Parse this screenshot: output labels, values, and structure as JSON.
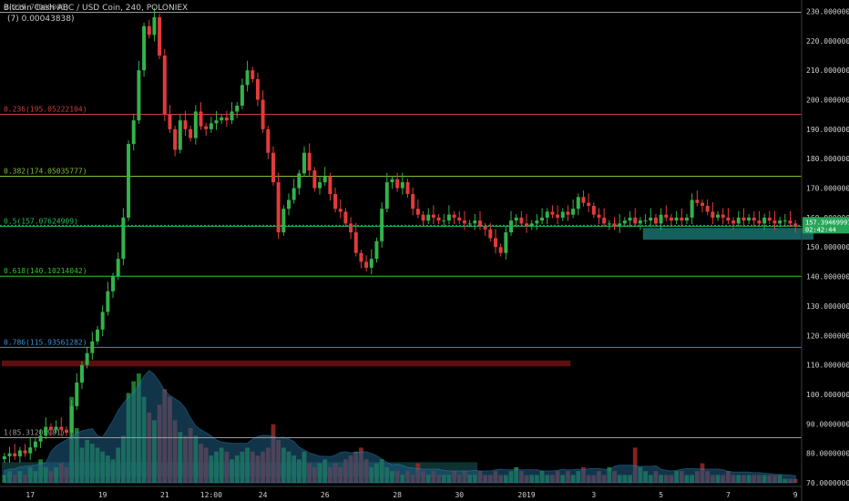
{
  "header": {
    "title": "Bitcoin Cash ABC / USD Coin, 240, POLONIEX",
    "subtitle": "(7) 0.00043838)"
  },
  "colors": {
    "up": "#33b24a",
    "down": "#e23b3b",
    "background": "#000000",
    "axis_text": "#cfcfcf",
    "volume_area": "#1f5f86",
    "current_price_bg": "#27a65a",
    "support_zone": "#1e7f7f",
    "resistance_zone": "#7a1414"
  },
  "chart_data": {
    "type": "candlestick",
    "ylim": [
      70,
      232
    ],
    "yticks": [
      70,
      80,
      90,
      100,
      110,
      120,
      130,
      140,
      150,
      160,
      170,
      180,
      190,
      200,
      210,
      220,
      230
    ],
    "ytick_labels": [
      "70.00000000",
      "80.00000000",
      "90.00000000",
      "100.00000000",
      "110.00000000",
      "120.00000000",
      "130.00000000",
      "140.00000000",
      "150.00000000",
      "160.00000000",
      "170.00000000",
      "180.00000000",
      "190.00000000",
      "200.00000000",
      "210.00000000",
      "220.00000000",
      "230.00000000"
    ],
    "xticks": [
      {
        "label": "17",
        "i": 5
      },
      {
        "label": "19",
        "i": 19
      },
      {
        "label": "21",
        "i": 31
      },
      {
        "label": "12:00",
        "i": 40
      },
      {
        "label": "24",
        "i": 50
      },
      {
        "label": "26",
        "i": 62
      },
      {
        "label": "28",
        "i": 76
      },
      {
        "label": "30",
        "i": 88
      },
      {
        "label": "2019",
        "i": 101
      },
      {
        "label": "3",
        "i": 114
      },
      {
        "label": "5",
        "i": 127
      },
      {
        "label": "7",
        "i": 140
      },
      {
        "label": "9",
        "i": 153
      }
    ],
    "fib_levels": [
      {
        "label": "1(85.31205981)",
        "value": 85.31205981,
        "color": "#9a9a9a"
      },
      {
        "label": "0.786(115.93561282)",
        "value": 115.93561282,
        "color": "#3d8fd1"
      },
      {
        "label": "0.618(140.10214042)",
        "value": 140.10214042,
        "color": "#3bbf3b"
      },
      {
        "label": "0.5(157.07624909)",
        "value": 157.07624909,
        "color": "#1fbf5a"
      },
      {
        "label": "0.382(174.05035777)",
        "value": 174.05035777,
        "color": "#7fbf3b"
      },
      {
        "label": "0.236(195.05222104)",
        "value": 195.05222104,
        "color": "#d13b3b"
      },
      {
        "label": "0(229.70000000)",
        "value": 229.7,
        "color": "#9a9a9a"
      }
    ],
    "current_price": {
      "label": "157.39469997",
      "value": 157.39469997,
      "countdown": "02:42:44"
    },
    "zones": [
      {
        "name": "support",
        "low": 152.5,
        "high": 156.5,
        "from_i": 124,
        "to_i": 157
      },
      {
        "name": "resistance",
        "low": 109.5,
        "high": 111.5,
        "from_i": 0,
        "to_i": 110
      },
      {
        "name": "volume-zone",
        "low": 72,
        "high": 77,
        "from_i": 0,
        "to_i": 92
      }
    ],
    "closes": [
      79,
      80,
      79,
      81,
      80,
      82,
      84,
      86,
      89,
      88,
      89,
      88,
      87,
      96,
      104,
      110,
      114,
      118,
      122,
      128,
      135,
      140,
      146,
      160,
      185,
      193,
      210,
      225,
      222,
      228,
      215,
      195,
      190,
      183,
      193,
      190,
      187,
      196,
      191,
      190,
      192,
      193,
      194,
      193,
      196,
      198,
      205,
      210,
      207,
      200,
      190,
      182,
      172,
      155,
      163,
      166,
      170,
      175,
      182,
      176,
      170,
      172,
      174,
      168,
      163,
      162,
      158,
      155,
      148,
      145,
      143,
      146,
      152,
      163,
      172,
      173,
      170,
      172,
      168,
      163,
      161,
      159,
      161,
      160,
      159,
      159,
      161,
      160,
      159,
      158,
      158,
      159,
      157,
      156,
      153,
      150,
      148,
      155,
      159,
      160,
      158,
      157,
      158,
      159,
      160,
      162,
      161,
      160,
      162,
      161,
      163,
      167,
      165,
      164,
      161,
      160,
      158,
      158,
      157,
      158,
      159,
      160,
      158,
      159,
      159,
      160,
      158,
      161,
      160,
      159,
      160,
      159,
      160,
      166,
      165,
      164,
      162,
      160,
      161,
      160,
      159,
      158,
      160,
      159,
      160,
      159,
      158,
      160,
      159,
      158,
      159,
      159,
      158,
      157
    ],
    "volumes": [
      2,
      3,
      2,
      3,
      2,
      4,
      3,
      6,
      4,
      3,
      4,
      5,
      4,
      22,
      14,
      9,
      11,
      10,
      9,
      8,
      7,
      6,
      9,
      12,
      23,
      26,
      28,
      22,
      18,
      16,
      20,
      24,
      22,
      16,
      13,
      12,
      14,
      12,
      10,
      9,
      7,
      8,
      9,
      8,
      6,
      7,
      8,
      9,
      8,
      7,
      8,
      9,
      15,
      11,
      9,
      8,
      7,
      6,
      8,
      5,
      4,
      5,
      6,
      4,
      5,
      4,
      6,
      7,
      8,
      9,
      6,
      4,
      5,
      6,
      4,
      3,
      3,
      2,
      3,
      2,
      5,
      3,
      2,
      3,
      2,
      2,
      2,
      3,
      2,
      3,
      2,
      2,
      3,
      2,
      2,
      3,
      2,
      2,
      3,
      4,
      3,
      2,
      2,
      2,
      3,
      2,
      2,
      3,
      2,
      3,
      2,
      3,
      4,
      2,
      2,
      3,
      2,
      4,
      3,
      2,
      2,
      2,
      9,
      4,
      3,
      2,
      3,
      2,
      2,
      2,
      3,
      3,
      2,
      2,
      3,
      5,
      3,
      2,
      2,
      2,
      3,
      2,
      2,
      2,
      2,
      2,
      2,
      2,
      2,
      2,
      2,
      1,
      1,
      1
    ]
  }
}
